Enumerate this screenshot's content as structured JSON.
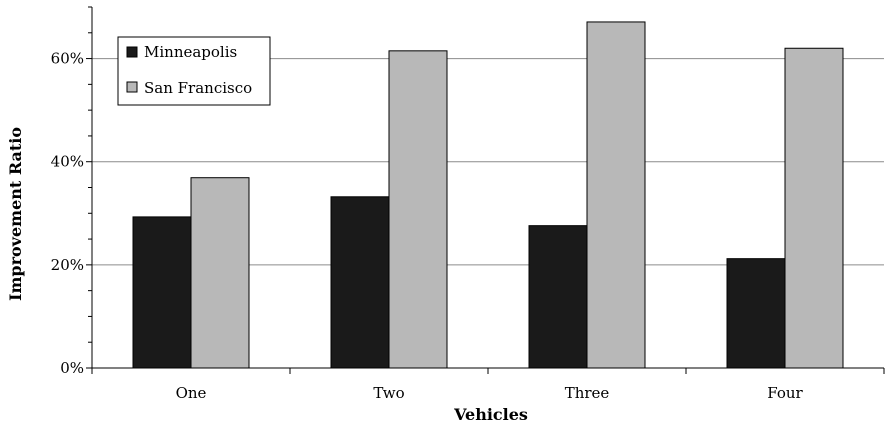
{
  "chart_data": {
    "type": "bar",
    "categories": [
      "One",
      "Two",
      "Three",
      "Four"
    ],
    "series": [
      {
        "name": "Minneapolis",
        "values": [
          29.3,
          33.2,
          27.6,
          21.2
        ],
        "color": "#1a1a1a"
      },
      {
        "name": "San Francisco",
        "values": [
          36.9,
          61.5,
          67.1,
          62.0
        ],
        "color": "#b8b8b8"
      }
    ],
    "xlabel": "Vehicles",
    "ylabel": "Improvement Ratio",
    "ylim": [
      0,
      70
    ],
    "yticks": [
      0,
      20,
      40,
      60
    ],
    "ytick_labels": [
      "0%",
      "20%",
      "40%",
      "60%"
    ],
    "grid": true,
    "legend_position": "top-left"
  }
}
